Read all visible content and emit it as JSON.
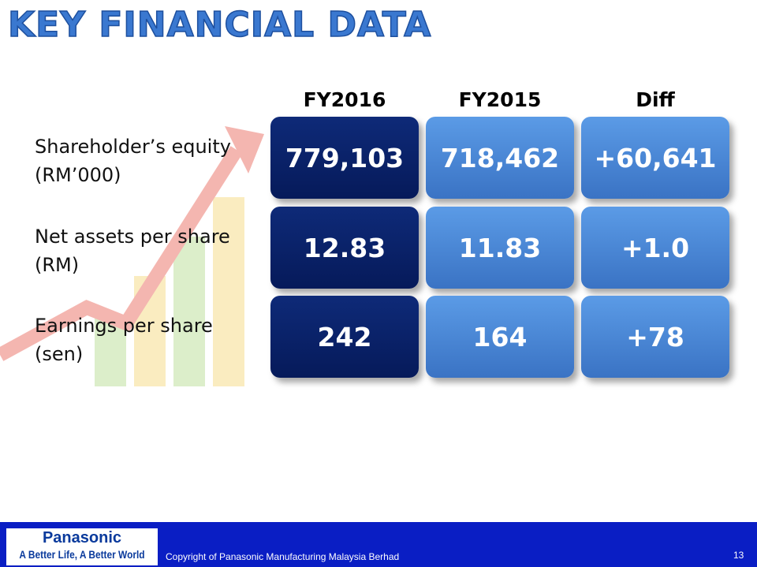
{
  "header": {
    "title": "KEY FINANCIAL DATA"
  },
  "table": {
    "columns": [
      "FY2016",
      "FY2015",
      "Diff"
    ],
    "rows": [
      {
        "label": [
          "Shareholder’s equity",
          "(RM’000)"
        ],
        "cells": [
          "779,103",
          "718,462",
          "+60,641"
        ]
      },
      {
        "label": [
          "Net assets per share",
          "(RM)"
        ],
        "cells": [
          "12.83",
          "11.83",
          "+1.0"
        ]
      },
      {
        "label": [
          "Earnings per share",
          "(sen)"
        ],
        "cells": [
          "242",
          "164",
          "+78"
        ]
      }
    ]
  },
  "footer": {
    "brand": "Panasonic",
    "slogan": "A Better Life, A Better World",
    "copyright": "Copyright of Panasonic Manufacturing Malaysia Berhad",
    "page": "13"
  }
}
